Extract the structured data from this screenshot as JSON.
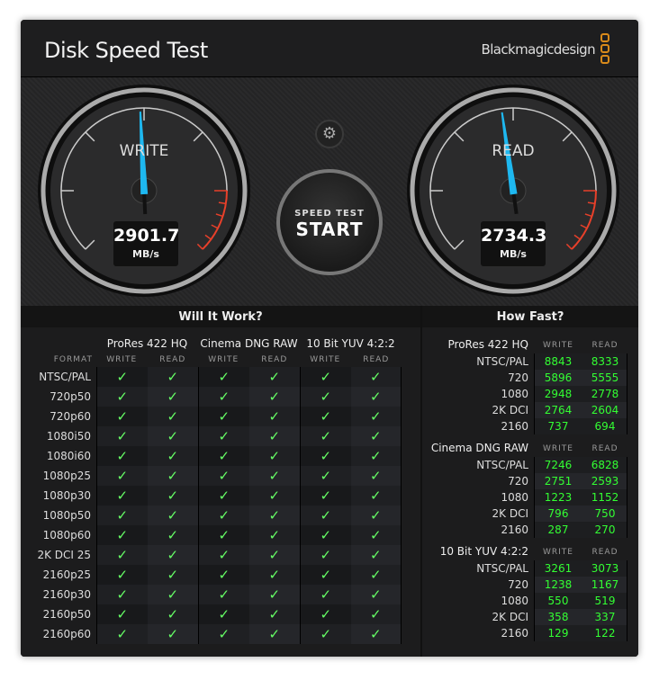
{
  "window": {
    "title": "Disk Speed Test",
    "brand": "Blackmagicdesign",
    "close_label": "×"
  },
  "gauges": {
    "write": {
      "label": "WRITE",
      "value": "2901.7",
      "unit": "MB/s",
      "needle_fraction": 0.49
    },
    "read": {
      "label": "READ",
      "value": "2734.3",
      "unit": "MB/s",
      "needle_fraction": 0.47
    },
    "needle_color": "#1eb8f0",
    "redzone_color": "#e8402a"
  },
  "start_button": {
    "line1": "SPEED TEST",
    "line2": "START"
  },
  "settings_icon": "gear-icon",
  "will_it_work": {
    "title": "Will It Work?",
    "format_header": "FORMAT",
    "groups": [
      "ProRes 422 HQ",
      "Cinema DNG RAW",
      "10 Bit YUV 4:2:2"
    ],
    "sub_headers": [
      "WRITE",
      "READ"
    ],
    "formats": [
      "NTSC/PAL",
      "720p50",
      "720p60",
      "1080i50",
      "1080i60",
      "1080p25",
      "1080p30",
      "1080p50",
      "1080p60",
      "2K DCI 25",
      "2160p25",
      "2160p30",
      "2160p50",
      "2160p60"
    ],
    "check": "✓"
  },
  "how_fast": {
    "title": "How Fast?",
    "sub_headers": [
      "WRITE",
      "READ"
    ],
    "sections": [
      {
        "name": "ProRes 422 HQ",
        "rows": [
          [
            "NTSC/PAL",
            "8843",
            "8333"
          ],
          [
            "720",
            "5896",
            "5555"
          ],
          [
            "1080",
            "2948",
            "2778"
          ],
          [
            "2K DCI",
            "2764",
            "2604"
          ],
          [
            "2160",
            "737",
            "694"
          ]
        ]
      },
      {
        "name": "Cinema DNG RAW",
        "rows": [
          [
            "NTSC/PAL",
            "7246",
            "6828"
          ],
          [
            "720",
            "2751",
            "2593"
          ],
          [
            "1080",
            "1223",
            "1152"
          ],
          [
            "2K DCI",
            "796",
            "750"
          ],
          [
            "2160",
            "287",
            "270"
          ]
        ]
      },
      {
        "name": "10 Bit YUV 4:2:2",
        "rows": [
          [
            "NTSC/PAL",
            "3261",
            "3073"
          ],
          [
            "720",
            "1238",
            "1167"
          ],
          [
            "1080",
            "550",
            "519"
          ],
          [
            "2K DCI",
            "358",
            "337"
          ],
          [
            "2160",
            "129",
            "122"
          ]
        ]
      }
    ]
  }
}
